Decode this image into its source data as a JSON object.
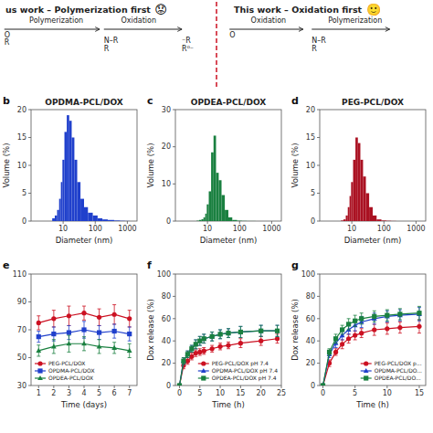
{
  "chart_data": [
    {
      "type": "scheme",
      "color": "#CC1122",
      "annotations": [
        "us work – Polymerization first",
        "😟",
        "This work – Oxidation first",
        "🙂",
        "Polymerization",
        "Oxidation",
        "O",
        "R",
        "N–R\nR",
        "⁻R\nR⁰⁻",
        "Oxidation",
        "Polymerization",
        "O",
        "N–R\nR"
      ]
    },
    {
      "type": "bar",
      "title": "OPDMA-PCL/DOX",
      "annotations": [
        "b"
      ],
      "xlabel": "Diameter (nm)",
      "ylabel": "Volume (%)",
      "x": [
        5,
        6,
        7,
        8,
        9,
        10,
        12,
        14,
        17,
        20,
        25,
        30,
        40,
        50,
        70,
        100,
        140,
        200,
        300,
        500,
        700,
        1000
      ],
      "values": [
        0.5,
        1.0,
        2.0,
        4.0,
        7.0,
        11.0,
        16.0,
        19.0,
        18.0,
        15.0,
        11.0,
        7.0,
        4.0,
        2.5,
        1.5,
        1.0,
        0.5,
        0.3,
        0.2,
        0.1,
        0.05,
        0.02
      ],
      "color": "#2040CC",
      "log": "x",
      "xlim": [
        1,
        2000
      ],
      "xticks": [
        10,
        100,
        1000
      ],
      "ylim": [
        0,
        20
      ],
      "yticks": [
        0,
        5,
        10,
        15,
        20
      ],
      "grid": false
    },
    {
      "type": "bar",
      "title": "OPDEA-PCL/DOX",
      "annotations": [
        "c"
      ],
      "xlabel": "Diameter (nm)",
      "ylabel": "Volume (%)",
      "x": [
        5,
        6,
        7,
        8,
        9,
        10,
        12,
        14,
        17,
        20,
        25,
        30,
        40,
        50,
        70,
        100,
        140,
        200,
        500,
        1000
      ],
      "values": [
        0.1,
        0.3,
        0.5,
        1.0,
        2.0,
        4.5,
        8.0,
        18.5,
        23.0,
        13.0,
        11.0,
        7.0,
        3.0,
        1.0,
        0.3,
        0.1,
        0.05,
        0.02,
        0.0,
        0.0
      ],
      "color": "#1A8040",
      "log": "x",
      "xlim": [
        1,
        2000
      ],
      "xticks": [
        10,
        100,
        1000
      ],
      "ylim": [
        0,
        30
      ],
      "yticks": [
        0,
        10,
        20,
        30
      ],
      "grid": false
    },
    {
      "type": "bar",
      "title": "PEG-PCL/DOX",
      "annotations": [
        "d"
      ],
      "xlabel": "Diameter (nm)",
      "ylabel": "Volume (%)",
      "x": [
        5,
        6,
        7,
        8,
        9,
        10,
        12,
        14,
        17,
        20,
        25,
        30,
        40,
        50,
        70,
        100,
        140,
        200
      ],
      "values": [
        0.1,
        0.3,
        1.0,
        2.5,
        4.5,
        7.0,
        11.0,
        15.0,
        14.0,
        11.0,
        8.0,
        5.0,
        2.5,
        1.0,
        0.3,
        0.1,
        0.05,
        0.02
      ],
      "color": "#AA1122",
      "log": "x",
      "xlim": [
        1,
        2000
      ],
      "xticks": [
        10,
        100,
        1000
      ],
      "ylim": [
        0,
        20
      ],
      "yticks": [
        0,
        5,
        10,
        15,
        20
      ],
      "grid": false
    },
    {
      "type": "line",
      "annotations": [
        "e"
      ],
      "xlabel": "Time (days)",
      "x": [
        1,
        2,
        3,
        4,
        5,
        6,
        7
      ],
      "xlim": [
        0.5,
        7.5
      ],
      "xticks": [
        1,
        2,
        3,
        4,
        5,
        6,
        7
      ],
      "ylim": [
        30,
        110
      ],
      "yticks": [
        30,
        50,
        70,
        90,
        110
      ],
      "grid": false,
      "legend": "lower left",
      "series": [
        {
          "name": "PEG-PCL/DOX",
          "color": "#CC1122",
          "marker": "circle",
          "values": [
            75,
            78,
            80,
            82,
            79,
            81,
            78
          ],
          "errors": [
            5,
            6,
            7,
            5,
            6,
            7,
            6
          ]
        },
        {
          "name": "OPDMA-PCL/DOX",
          "color": "#2040CC",
          "marker": "square",
          "values": [
            65,
            67,
            68,
            70,
            68,
            69,
            67
          ],
          "errors": [
            4,
            5,
            5,
            6,
            5,
            5,
            5
          ]
        },
        {
          "name": "OPDEA-PCL/DOX",
          "color": "#1A8040",
          "marker": "triangle",
          "values": [
            55,
            58,
            60,
            60,
            58,
            57,
            55
          ],
          "errors": [
            4,
            5,
            6,
            5,
            5,
            4,
            5
          ]
        }
      ]
    },
    {
      "type": "line",
      "annotations": [
        "f"
      ],
      "xlabel": "Time (h)",
      "ylabel": "Dox release (%)",
      "x": [
        0,
        1,
        2,
        3,
        4,
        5,
        6,
        8,
        10,
        12,
        15,
        20,
        24
      ],
      "xlim": [
        -1,
        25
      ],
      "xticks": [
        0,
        5,
        10,
        15,
        20,
        25
      ],
      "ylim": [
        0,
        100
      ],
      "yticks": [
        0,
        20,
        40,
        60,
        80,
        100
      ],
      "grid": false,
      "legend": "lower right",
      "series": [
        {
          "name": "PEG-PCL/DOX pH 7.4",
          "color": "#CC1122",
          "marker": "circle",
          "values": [
            0,
            18,
            22,
            26,
            29,
            30,
            31,
            33,
            35,
            36,
            38,
            40,
            42
          ],
          "errors": [
            0,
            3,
            3,
            3,
            3,
            3,
            3,
            3,
            3,
            3,
            4,
            4,
            4
          ]
        },
        {
          "name": "OPDMA-PCL/DOX pH 7.4",
          "color": "#2040CC",
          "marker": "triangle",
          "values": [
            0,
            22,
            28,
            33,
            37,
            40,
            42,
            44,
            46,
            47,
            48,
            49,
            49
          ],
          "errors": [
            0,
            3,
            3,
            3,
            4,
            4,
            4,
            4,
            4,
            4,
            5,
            5,
            5
          ]
        },
        {
          "name": "OPDEA-PCL/DOX pH 7.4",
          "color": "#1A8040",
          "marker": "square",
          "values": [
            0,
            22,
            28,
            33,
            37,
            40,
            42,
            44,
            46,
            47,
            48,
            49,
            49
          ],
          "errors": [
            0,
            3,
            3,
            3,
            4,
            4,
            4,
            4,
            4,
            4,
            5,
            5,
            5
          ]
        }
      ]
    },
    {
      "type": "line",
      "annotations": [
        "g"
      ],
      "xlabel": "Time (h)",
      "ylabel": "Dox release (%)",
      "x": [
        0,
        1,
        2,
        3,
        4,
        5,
        6,
        8,
        10,
        12,
        15
      ],
      "xlim": [
        -0.5,
        16
      ],
      "xticks": [
        0,
        5,
        10,
        15
      ],
      "ylim": [
        0,
        100
      ],
      "yticks": [
        0,
        20,
        40,
        60,
        80,
        100
      ],
      "grid": false,
      "legend": "lower right",
      "series": [
        {
          "name": "PEG-PCL/DOX p...",
          "color": "#CC1122",
          "marker": "circle",
          "values": [
            0,
            20,
            30,
            37,
            42,
            45,
            47,
            50,
            51,
            52,
            53
          ],
          "errors": [
            0,
            3,
            3,
            4,
            4,
            4,
            4,
            5,
            5,
            5,
            6
          ]
        },
        {
          "name": "OPDMA-PCL/DO...",
          "color": "#2040CC",
          "marker": "triangle",
          "values": [
            0,
            28,
            38,
            45,
            50,
            54,
            57,
            60,
            62,
            63,
            64
          ],
          "errors": [
            0,
            3,
            4,
            4,
            4,
            5,
            5,
            5,
            5,
            5,
            6
          ]
        },
        {
          "name": "OPDEA-PCL/DO...",
          "color": "#1A8040",
          "marker": "square",
          "values": [
            0,
            30,
            42,
            50,
            55,
            58,
            60,
            62,
            63,
            64,
            65
          ],
          "errors": [
            0,
            3,
            4,
            4,
            5,
            5,
            5,
            5,
            5,
            5,
            6
          ]
        }
      ]
    }
  ]
}
